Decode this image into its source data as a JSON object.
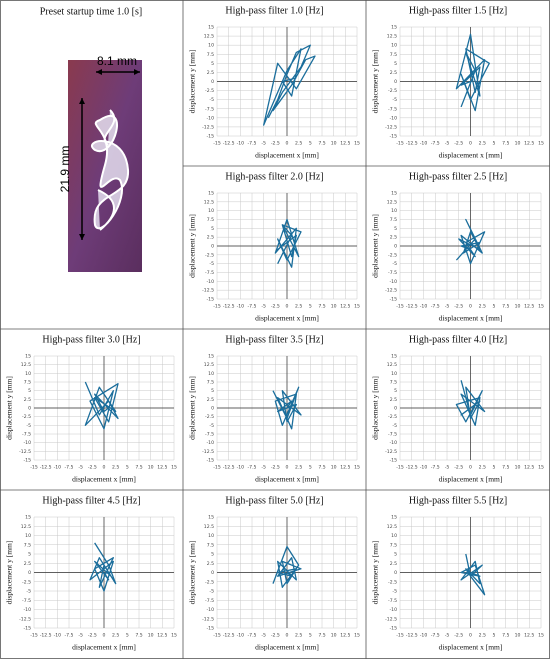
{
  "photo": {
    "title": "Preset startup time 1.0 [s]",
    "width_label": "8.1 mm",
    "height_label": "21.9 mm"
  },
  "chart_data": [
    {
      "type": "line",
      "title": "High-pass filter 1.0 [Hz]",
      "x_label": "displacement x [mm]",
      "y_label": "displacement y [mm]",
      "color": "#1b6e9c",
      "grid": true,
      "xlim": [
        -15,
        15
      ],
      "ylim": [
        -15,
        15
      ],
      "xticks": [
        -15,
        -12.5,
        -10,
        -7.5,
        -5,
        -2.5,
        0,
        2.5,
        5,
        7.5,
        10,
        12.5,
        15
      ],
      "yticks": [
        -15,
        -12.5,
        -10,
        -7.5,
        -5,
        -2.5,
        0,
        2.5,
        5,
        7.5,
        10,
        12.5,
        15
      ],
      "x": [
        -4,
        -2,
        0,
        2,
        5,
        3,
        -1,
        -3,
        1,
        4,
        6,
        2,
        -2,
        -5,
        -3,
        0,
        3,
        1,
        -1,
        2
      ],
      "y": [
        -10,
        -5,
        2,
        8,
        10,
        4,
        -3,
        -8,
        -1,
        6,
        7,
        -2,
        5,
        -12,
        -6,
        3,
        9,
        -4,
        0,
        1
      ]
    },
    {
      "type": "line",
      "title": "High-pass filter 1.5 [Hz]",
      "x_label": "displacement x [mm]",
      "y_label": "displacement y [mm]",
      "color": "#1b6e9c",
      "grid": true,
      "xlim": [
        -15,
        15
      ],
      "ylim": [
        -15,
        15
      ],
      "xticks": [
        -15,
        -12.5,
        -10,
        -7.5,
        -5,
        -2.5,
        0,
        2.5,
        5,
        7.5,
        10,
        12.5,
        15
      ],
      "yticks": [
        -15,
        -12.5,
        -10,
        -7.5,
        -5,
        -2.5,
        0,
        2.5,
        5,
        7.5,
        10,
        12.5,
        15
      ],
      "x": [
        -2,
        1,
        -1,
        2,
        0,
        -3,
        3,
        1,
        -2,
        0,
        4,
        -1,
        1,
        2,
        -2,
        0
      ],
      "y": [
        -7,
        3,
        8,
        -4,
        13,
        -2,
        6,
        -8,
        2,
        -5,
        5,
        9,
        -3,
        4,
        -1,
        0
      ]
    },
    {
      "type": "line",
      "title": "High-pass filter 2.0 [Hz]",
      "x_label": "displacement x [mm]",
      "y_label": "displacement y [mm]",
      "color": "#1b6e9c",
      "grid": true,
      "xlim": [
        -15,
        15
      ],
      "ylim": [
        -15,
        15
      ],
      "xticks": [
        -15,
        -12.5,
        -10,
        -7.5,
        -5,
        -2.5,
        0,
        2.5,
        5,
        7.5,
        10,
        12.5,
        15
      ],
      "yticks": [
        -15,
        -12.5,
        -10,
        -7.5,
        -5,
        -2.5,
        0,
        2.5,
        5,
        7.5,
        10,
        12.5,
        15
      ],
      "x": [
        -2,
        1,
        -1,
        2.5,
        0,
        -2.5,
        2,
        1,
        -2,
        0,
        3,
        -1,
        1,
        2,
        -2,
        0
      ],
      "y": [
        -5,
        3,
        6,
        -3,
        7.5,
        -2,
        5,
        -6,
        2,
        -4,
        4,
        6,
        -3,
        3,
        -1,
        1
      ]
    },
    {
      "type": "line",
      "title": "High-pass filter 2.5 [Hz]",
      "x_label": "displacement x [mm]",
      "y_label": "displacement y [mm]",
      "color": "#1b6e9c",
      "grid": true,
      "xlim": [
        -15,
        15
      ],
      "ylim": [
        -15,
        15
      ],
      "xticks": [
        -15,
        -12.5,
        -10,
        -7.5,
        -5,
        -2.5,
        0,
        2.5,
        5,
        7.5,
        10,
        12.5,
        15
      ],
      "yticks": [
        -15,
        -12.5,
        -10,
        -7.5,
        -5,
        -2.5,
        0,
        2.5,
        5,
        7.5,
        10,
        12.5,
        15
      ],
      "x": [
        -3,
        1,
        -1,
        2.5,
        -2,
        0,
        3,
        -1,
        1,
        -2.5,
        2,
        0,
        -1.5,
        2,
        -2,
        0
      ],
      "y": [
        -4,
        2,
        7.5,
        -2,
        3,
        -5,
        4,
        1,
        -3,
        2,
        -1,
        4,
        -2,
        1,
        0,
        -1
      ]
    },
    {
      "type": "line",
      "title": "High-pass filter 3.0 [Hz]",
      "x_label": "displacement x [mm]",
      "y_label": "displacement y [mm]",
      "color": "#1b6e9c",
      "grid": true,
      "xlim": [
        -15,
        15
      ],
      "ylim": [
        -15,
        15
      ],
      "xticks": [
        -15,
        -12.5,
        -10,
        -7.5,
        -5,
        -2.5,
        0,
        2.5,
        5,
        7.5,
        10,
        12.5,
        15
      ],
      "yticks": [
        -15,
        -12.5,
        -10,
        -7.5,
        -5,
        -2.5,
        0,
        2.5,
        5,
        7.5,
        10,
        12.5,
        15
      ],
      "x": [
        -4,
        -1,
        2,
        0,
        -3,
        3,
        1,
        -2,
        2.5,
        -1,
        -4,
        1,
        3,
        -2,
        0,
        1
      ],
      "y": [
        7.5,
        -2,
        5,
        -6,
        2,
        7,
        -4,
        3,
        -1,
        6,
        -5,
        2,
        -3,
        4,
        -1,
        0
      ]
    },
    {
      "type": "line",
      "title": "High-pass filter 3.5 [Hz]",
      "x_label": "displacement x [mm]",
      "y_label": "displacement y [mm]",
      "color": "#1b6e9c",
      "grid": true,
      "xlim": [
        -15,
        15
      ],
      "ylim": [
        -15,
        15
      ],
      "xticks": [
        -15,
        -12.5,
        -10,
        -7.5,
        -5,
        -2.5,
        0,
        2.5,
        5,
        7.5,
        10,
        12.5,
        15
      ],
      "yticks": [
        -15,
        -12.5,
        -10,
        -7.5,
        -5,
        -2.5,
        0,
        2.5,
        5,
        7.5,
        10,
        12.5,
        15
      ],
      "x": [
        -3,
        0,
        2.5,
        -1,
        -2.5,
        2,
        1,
        -2,
        3,
        -1,
        0,
        2,
        -2,
        1,
        0
      ],
      "y": [
        5,
        -3,
        6,
        -5,
        2,
        4,
        -6,
        3,
        -2,
        5,
        -4,
        1,
        -1,
        2,
        0
      ]
    },
    {
      "type": "line",
      "title": "High-pass filter 4.0 [Hz]",
      "x_label": "displacement x [mm]",
      "y_label": "displacement y [mm]",
      "color": "#1b6e9c",
      "grid": true,
      "xlim": [
        -15,
        15
      ],
      "ylim": [
        -15,
        15
      ],
      "xticks": [
        -15,
        -12.5,
        -10,
        -7.5,
        -5,
        -2.5,
        0,
        2.5,
        5,
        7.5,
        10,
        12.5,
        15
      ],
      "yticks": [
        -15,
        -12.5,
        -10,
        -7.5,
        -5,
        -2.5,
        0,
        2.5,
        5,
        7.5,
        10,
        12.5,
        15
      ],
      "x": [
        -2,
        0,
        2.5,
        -1,
        -3,
        2,
        1,
        -2,
        3,
        -1,
        0,
        2,
        -2,
        1,
        0
      ],
      "y": [
        8,
        -2,
        5,
        -4,
        1,
        3,
        -5,
        4,
        -1,
        6,
        -3,
        2,
        -2,
        1,
        0
      ]
    },
    {
      "type": "line",
      "title": "High-pass filter 4.5 [Hz]",
      "x_label": "displacement x [mm]",
      "y_label": "displacement y [mm]",
      "color": "#1b6e9c",
      "grid": true,
      "xlim": [
        -15,
        15
      ],
      "ylim": [
        -15,
        15
      ],
      "xticks": [
        -15,
        -12.5,
        -10,
        -7.5,
        -5,
        -2.5,
        0,
        2.5,
        5,
        7.5,
        10,
        12.5,
        15
      ],
      "yticks": [
        -15,
        -12.5,
        -10,
        -7.5,
        -5,
        -2.5,
        0,
        2.5,
        5,
        7.5,
        10,
        12.5,
        15
      ],
      "x": [
        -2,
        1,
        2.5,
        -1,
        -3,
        2,
        0,
        -2,
        2,
        -1,
        0,
        1.5,
        -2,
        1,
        0
      ],
      "y": [
        8,
        2,
        -3,
        4,
        -2,
        3,
        -5,
        1,
        4,
        -4,
        2,
        -1,
        3,
        -2,
        0
      ]
    },
    {
      "type": "line",
      "title": "High-pass filter 5.0 [Hz]",
      "x_label": "displacement x [mm]",
      "y_label": "displacement y [mm]",
      "color": "#1b6e9c",
      "grid": true,
      "xlim": [
        -15,
        15
      ],
      "ylim": [
        -15,
        15
      ],
      "xticks": [
        -15,
        -12.5,
        -10,
        -7.5,
        -5,
        -2.5,
        0,
        2.5,
        5,
        7.5,
        10,
        12.5,
        15
      ],
      "yticks": [
        -15,
        -12.5,
        -10,
        -7.5,
        -5,
        -2.5,
        0,
        2.5,
        5,
        7.5,
        10,
        12.5,
        15
      ],
      "x": [
        -3,
        0,
        2.5,
        -1,
        -2,
        2,
        1,
        -2,
        3,
        -1,
        0,
        2,
        -2,
        1,
        0
      ],
      "y": [
        -3,
        7,
        2,
        -4,
        3,
        -2,
        4,
        -1,
        1,
        3,
        -3,
        1,
        0,
        -1,
        0
      ]
    },
    {
      "type": "line",
      "title": "High-pass filter 5.5 [Hz]",
      "x_label": "displacement x [mm]",
      "y_label": "displacement y [mm]",
      "color": "#1b6e9c",
      "grid": true,
      "xlim": [
        -15,
        15
      ],
      "ylim": [
        -15,
        15
      ],
      "xticks": [
        -15,
        -12.5,
        -10,
        -7.5,
        -5,
        -2.5,
        0,
        2.5,
        5,
        7.5,
        10,
        12.5,
        15
      ],
      "yticks": [
        -15,
        -12.5,
        -10,
        -7.5,
        -5,
        -2.5,
        0,
        2.5,
        5,
        7.5,
        10,
        12.5,
        15
      ],
      "x": [
        -1,
        0,
        2.5,
        -2,
        1,
        2,
        -1,
        0,
        3,
        1,
        -2,
        2,
        0
      ],
      "y": [
        5,
        -1,
        2,
        -2,
        3,
        -3,
        1,
        -1,
        -6,
        2,
        0,
        -1,
        0
      ]
    }
  ]
}
